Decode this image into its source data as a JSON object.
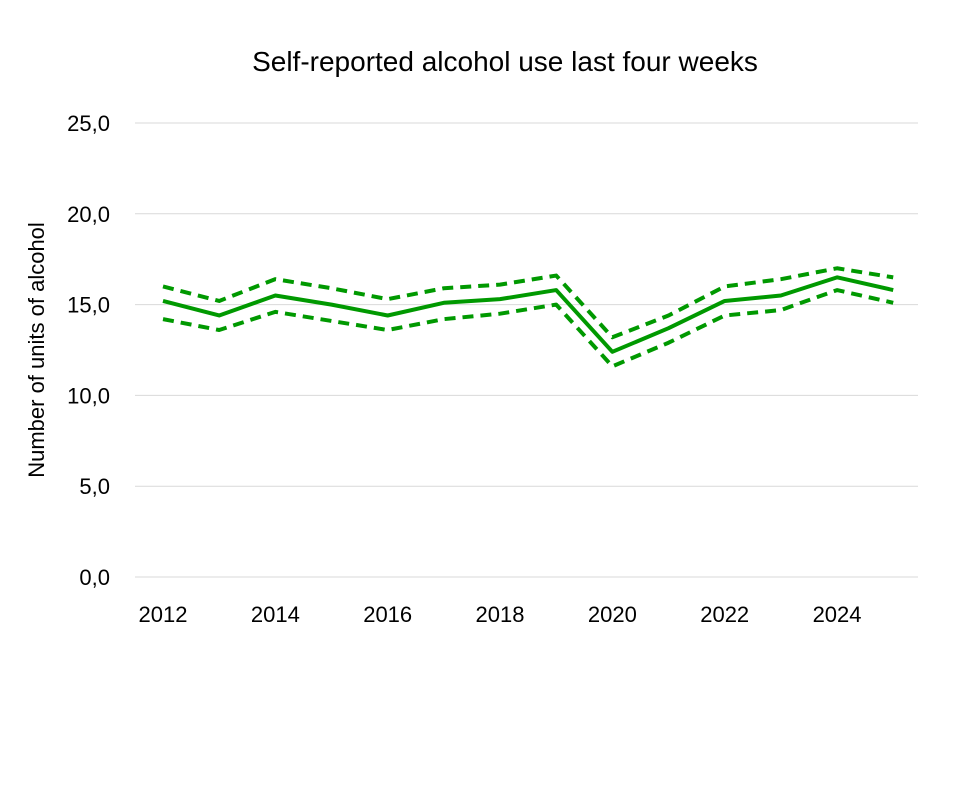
{
  "chart_data": {
    "type": "line",
    "title": "Self-reported alcohol use last four weeks",
    "xlabel": "",
    "ylabel": "Number of units of alcohol",
    "x": [
      2012,
      2013,
      2014,
      2015,
      2016,
      2017,
      2018,
      2019,
      2020,
      2021,
      2022,
      2023,
      2024,
      2025
    ],
    "x_tick_labels": [
      "2012",
      "2014",
      "2016",
      "2018",
      "2020",
      "2022",
      "2024"
    ],
    "y_tick_labels": [
      "0,0",
      "5,0",
      "10,0",
      "15,0",
      "20,0",
      "25,0"
    ],
    "ylim": [
      0,
      25
    ],
    "grid": true,
    "legend": "none",
    "series": [
      {
        "style": "solid",
        "color": "#009900",
        "values": [
          15.2,
          14.4,
          15.5,
          15.0,
          14.4,
          15.1,
          15.3,
          15.8,
          12.4,
          13.7,
          15.2,
          15.5,
          16.5,
          15.8
        ]
      },
      {
        "style": "dashed",
        "color": "#009900",
        "values": [
          16.0,
          15.2,
          16.4,
          15.9,
          15.3,
          15.9,
          16.1,
          16.6,
          13.2,
          14.4,
          16.0,
          16.4,
          17.0,
          16.5
        ]
      },
      {
        "style": "dashed",
        "color": "#009900",
        "values": [
          14.2,
          13.6,
          14.6,
          14.1,
          13.6,
          14.2,
          14.5,
          15.0,
          11.6,
          12.9,
          14.4,
          14.7,
          15.8,
          15.1
        ]
      }
    ]
  }
}
